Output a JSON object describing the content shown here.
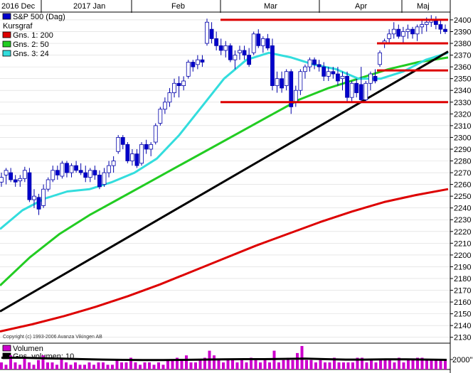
{
  "chart_data": {
    "type": "candlestick",
    "x_months": [
      "2016 Dec",
      "2017 Jan",
      "Feb",
      "Mar",
      "Apr",
      "Maj"
    ],
    "ylim": [
      2125,
      2406
    ],
    "y_ticks": [
      2130,
      2140,
      2150,
      2160,
      2170,
      2180,
      2190,
      2200,
      2210,
      2220,
      2230,
      2240,
      2250,
      2260,
      2270,
      2280,
      2290,
      2300,
      2310,
      2320,
      2330,
      2340,
      2350,
      2360,
      2370,
      2380,
      2390,
      2400
    ],
    "legend": [
      {
        "label": "S&P 500 (Dag)",
        "color": "#0000cc",
        "kind": "box"
      },
      {
        "label": "Kursgraf",
        "color": "",
        "kind": "none"
      },
      {
        "label": "Gns. 1: 200",
        "color": "#dd0000",
        "kind": "box"
      },
      {
        "label": "Gns. 2: 50",
        "color": "#22cc22",
        "kind": "box"
      },
      {
        "label": "Gns. 3: 24",
        "color": "#33dddd",
        "kind": "box"
      }
    ],
    "copyright": "Copyright (c) 1993-2006 Avanza Vikingen AB",
    "candles": [
      {
        "o": 2262,
        "h": 2270,
        "l": 2258,
        "c": 2266
      },
      {
        "o": 2268,
        "h": 2274,
        "l": 2260,
        "c": 2272
      },
      {
        "o": 2270,
        "h": 2274,
        "l": 2262,
        "c": 2264
      },
      {
        "o": 2264,
        "h": 2268,
        "l": 2258,
        "c": 2262
      },
      {
        "o": 2263,
        "h": 2268,
        "l": 2258,
        "c": 2265
      },
      {
        "o": 2265,
        "h": 2275,
        "l": 2262,
        "c": 2272
      },
      {
        "o": 2270,
        "h": 2274,
        "l": 2245,
        "c": 2247
      },
      {
        "o": 2247,
        "h": 2256,
        "l": 2240,
        "c": 2250
      },
      {
        "o": 2249,
        "h": 2252,
        "l": 2234,
        "c": 2239
      },
      {
        "o": 2242,
        "h": 2260,
        "l": 2240,
        "c": 2256
      },
      {
        "o": 2256,
        "h": 2266,
        "l": 2254,
        "c": 2264
      },
      {
        "o": 2264,
        "h": 2276,
        "l": 2262,
        "c": 2272
      },
      {
        "o": 2272,
        "h": 2276,
        "l": 2264,
        "c": 2268
      },
      {
        "o": 2267,
        "h": 2280,
        "l": 2265,
        "c": 2278
      },
      {
        "o": 2278,
        "h": 2280,
        "l": 2266,
        "c": 2270
      },
      {
        "o": 2270,
        "h": 2278,
        "l": 2266,
        "c": 2276
      },
      {
        "o": 2276,
        "h": 2280,
        "l": 2270,
        "c": 2272
      },
      {
        "o": 2272,
        "h": 2278,
        "l": 2268,
        "c": 2270
      },
      {
        "o": 2270,
        "h": 2276,
        "l": 2262,
        "c": 2266
      },
      {
        "o": 2266,
        "h": 2274,
        "l": 2262,
        "c": 2272
      },
      {
        "o": 2272,
        "h": 2276,
        "l": 2264,
        "c": 2268
      },
      {
        "o": 2268,
        "h": 2272,
        "l": 2256,
        "c": 2258
      },
      {
        "o": 2260,
        "h": 2274,
        "l": 2258,
        "c": 2270
      },
      {
        "o": 2270,
        "h": 2280,
        "l": 2266,
        "c": 2276
      },
      {
        "o": 2276,
        "h": 2284,
        "l": 2270,
        "c": 2280
      },
      {
        "o": 2288,
        "h": 2302,
        "l": 2286,
        "c": 2300
      },
      {
        "o": 2300,
        "h": 2302,
        "l": 2290,
        "c": 2294
      },
      {
        "o": 2294,
        "h": 2296,
        "l": 2278,
        "c": 2280
      },
      {
        "o": 2280,
        "h": 2290,
        "l": 2276,
        "c": 2286
      },
      {
        "o": 2286,
        "h": 2290,
        "l": 2274,
        "c": 2276
      },
      {
        "o": 2278,
        "h": 2296,
        "l": 2276,
        "c": 2294
      },
      {
        "o": 2294,
        "h": 2298,
        "l": 2286,
        "c": 2290
      },
      {
        "o": 2290,
        "h": 2296,
        "l": 2284,
        "c": 2294
      },
      {
        "o": 2296,
        "h": 2312,
        "l": 2294,
        "c": 2310
      },
      {
        "o": 2312,
        "h": 2326,
        "l": 2310,
        "c": 2324
      },
      {
        "o": 2324,
        "h": 2334,
        "l": 2320,
        "c": 2330
      },
      {
        "o": 2330,
        "h": 2342,
        "l": 2326,
        "c": 2338
      },
      {
        "o": 2338,
        "h": 2350,
        "l": 2334,
        "c": 2346
      },
      {
        "o": 2346,
        "h": 2352,
        "l": 2334,
        "c": 2344
      },
      {
        "o": 2344,
        "h": 2352,
        "l": 2340,
        "c": 2348
      },
      {
        "o": 2352,
        "h": 2366,
        "l": 2350,
        "c": 2364
      },
      {
        "o": 2364,
        "h": 2366,
        "l": 2356,
        "c": 2360
      },
      {
        "o": 2362,
        "h": 2370,
        "l": 2358,
        "c": 2366
      },
      {
        "o": 2366,
        "h": 2370,
        "l": 2360,
        "c": 2364
      },
      {
        "o": 2380,
        "h": 2401,
        "l": 2378,
        "c": 2398
      },
      {
        "o": 2392,
        "h": 2398,
        "l": 2380,
        "c": 2384
      },
      {
        "o": 2384,
        "h": 2390,
        "l": 2374,
        "c": 2378
      },
      {
        "o": 2378,
        "h": 2384,
        "l": 2370,
        "c": 2374
      },
      {
        "o": 2374,
        "h": 2382,
        "l": 2368,
        "c": 2378
      },
      {
        "o": 2378,
        "h": 2380,
        "l": 2364,
        "c": 2366
      },
      {
        "o": 2366,
        "h": 2374,
        "l": 2358,
        "c": 2370
      },
      {
        "o": 2372,
        "h": 2378,
        "l": 2366,
        "c": 2374
      },
      {
        "o": 2374,
        "h": 2378,
        "l": 2366,
        "c": 2370
      },
      {
        "o": 2370,
        "h": 2376,
        "l": 2360,
        "c": 2362
      },
      {
        "o": 2372,
        "h": 2390,
        "l": 2370,
        "c": 2388
      },
      {
        "o": 2388,
        "h": 2392,
        "l": 2376,
        "c": 2378
      },
      {
        "o": 2378,
        "h": 2386,
        "l": 2372,
        "c": 2384
      },
      {
        "o": 2384,
        "h": 2388,
        "l": 2374,
        "c": 2376
      },
      {
        "o": 2378,
        "h": 2384,
        "l": 2340,
        "c": 2344
      },
      {
        "o": 2344,
        "h": 2356,
        "l": 2338,
        "c": 2350
      },
      {
        "o": 2350,
        "h": 2356,
        "l": 2338,
        "c": 2342
      },
      {
        "o": 2344,
        "h": 2358,
        "l": 2340,
        "c": 2356
      },
      {
        "o": 2356,
        "h": 2358,
        "l": 2320,
        "c": 2326
      },
      {
        "o": 2330,
        "h": 2344,
        "l": 2326,
        "c": 2340
      },
      {
        "o": 2340,
        "h": 2358,
        "l": 2336,
        "c": 2356
      },
      {
        "o": 2356,
        "h": 2362,
        "l": 2350,
        "c": 2360
      },
      {
        "o": 2360,
        "h": 2368,
        "l": 2356,
        "c": 2366
      },
      {
        "o": 2366,
        "h": 2368,
        "l": 2358,
        "c": 2362
      },
      {
        "o": 2362,
        "h": 2366,
        "l": 2356,
        "c": 2360
      },
      {
        "o": 2360,
        "h": 2364,
        "l": 2348,
        "c": 2352
      },
      {
        "o": 2352,
        "h": 2360,
        "l": 2348,
        "c": 2356
      },
      {
        "o": 2356,
        "h": 2360,
        "l": 2350,
        "c": 2354
      },
      {
        "o": 2354,
        "h": 2360,
        "l": 2344,
        "c": 2348
      },
      {
        "o": 2350,
        "h": 2356,
        "l": 2340,
        "c": 2352
      },
      {
        "o": 2352,
        "h": 2356,
        "l": 2330,
        "c": 2334
      },
      {
        "o": 2334,
        "h": 2348,
        "l": 2330,
        "c": 2346
      },
      {
        "o": 2346,
        "h": 2350,
        "l": 2334,
        "c": 2338
      },
      {
        "o": 2345,
        "h": 2360,
        "l": 2330,
        "c": 2332
      },
      {
        "o": 2332,
        "h": 2348,
        "l": 2330,
        "c": 2346
      },
      {
        "o": 2346,
        "h": 2356,
        "l": 2340,
        "c": 2354
      },
      {
        "o": 2352,
        "h": 2358,
        "l": 2346,
        "c": 2348
      },
      {
        "o": 2362,
        "h": 2374,
        "l": 2360,
        "c": 2372
      },
      {
        "o": 2380,
        "h": 2384,
        "l": 2376,
        "c": 2382
      },
      {
        "o": 2384,
        "h": 2392,
        "l": 2380,
        "c": 2388
      },
      {
        "o": 2388,
        "h": 2398,
        "l": 2384,
        "c": 2392
      },
      {
        "o": 2392,
        "h": 2396,
        "l": 2384,
        "c": 2386
      },
      {
        "o": 2386,
        "h": 2394,
        "l": 2380,
        "c": 2390
      },
      {
        "o": 2390,
        "h": 2396,
        "l": 2384,
        "c": 2392
      },
      {
        "o": 2392,
        "h": 2394,
        "l": 2384,
        "c": 2388
      },
      {
        "o": 2388,
        "h": 2396,
        "l": 2382,
        "c": 2394
      },
      {
        "o": 2394,
        "h": 2400,
        "l": 2388,
        "c": 2396
      },
      {
        "o": 2396,
        "h": 2402,
        "l": 2390,
        "c": 2398
      },
      {
        "o": 2398,
        "h": 2404,
        "l": 2394,
        "c": 2400
      },
      {
        "o": 2400,
        "h": 2403,
        "l": 2392,
        "c": 2396
      },
      {
        "o": 2396,
        "h": 2400,
        "l": 2388,
        "c": 2392
      },
      {
        "o": 2392,
        "h": 2396,
        "l": 2388,
        "c": 2390
      }
    ],
    "moving_averages": [
      {
        "period": 200,
        "color": "#dd0000",
        "values": [
          2135,
          2141,
          2148,
          2156,
          2165,
          2175,
          2186,
          2197,
          2208,
          2218,
          2228,
          2237,
          2245,
          2251,
          2256
        ]
      },
      {
        "period": 50,
        "color": "#22cc22",
        "values": [
          2174,
          2198,
          2218,
          2234,
          2248,
          2262,
          2276,
          2290,
          2304,
          2318,
          2332,
          2342,
          2350,
          2358,
          2364,
          2368
        ]
      },
      {
        "period": 24,
        "color": "#33dddd",
        "values": [
          2222,
          2238,
          2248,
          2254,
          2256,
          2262,
          2270,
          2282,
          2302,
          2326,
          2350,
          2366,
          2372,
          2368,
          2362,
          2358,
          2350,
          2350,
          2356,
          2366,
          2372
        ]
      }
    ],
    "trendline": {
      "color": "#000000",
      "from_value": 2152,
      "to_value": 2373
    },
    "horizontal_lines": [
      {
        "value": 2400,
        "color": "#dd0000"
      },
      {
        "value": 2380,
        "color": "#dd0000"
      },
      {
        "value": 2357,
        "color": "#dd0000"
      },
      {
        "value": 2330,
        "color": "#dd0000"
      }
    ],
    "volume_panel": {
      "legend": [
        {
          "label": "Volumen",
          "color": "#cc00cc"
        },
        {
          "label": "Gns. volumen: 10",
          "color": "#000000"
        }
      ],
      "tick_label": "2000\"",
      "bars": [
        3,
        2,
        6,
        3,
        2,
        5,
        3,
        2,
        4,
        6,
        3,
        3,
        2,
        5,
        3,
        2,
        3,
        2,
        2,
        3,
        2,
        3,
        3,
        2,
        2,
        4,
        3,
        3,
        5,
        3,
        2,
        3,
        3,
        2,
        3,
        2,
        4,
        4,
        5,
        4,
        6,
        3,
        3,
        4,
        5,
        8,
        6,
        4,
        3,
        4,
        4,
        3,
        4,
        3,
        5,
        4,
        3,
        4,
        3,
        8,
        3,
        4,
        5,
        4,
        7,
        10,
        4,
        4,
        3,
        4,
        3,
        3,
        5,
        3,
        3,
        3,
        3,
        5,
        5,
        3,
        4,
        3,
        4,
        4,
        4,
        3,
        5,
        3,
        4,
        4,
        5,
        5,
        4,
        4,
        4,
        4,
        4
      ],
      "avg": [
        5.0,
        5.0,
        4.8,
        4.6,
        4.4,
        4.2,
        4.1,
        4.0,
        4.0,
        4.1,
        4.2,
        4.3,
        4.4,
        4.4,
        4.5,
        4.6,
        4.4,
        4.2,
        4.2,
        4.3,
        4.3,
        4.2,
        4.1
      ]
    }
  }
}
